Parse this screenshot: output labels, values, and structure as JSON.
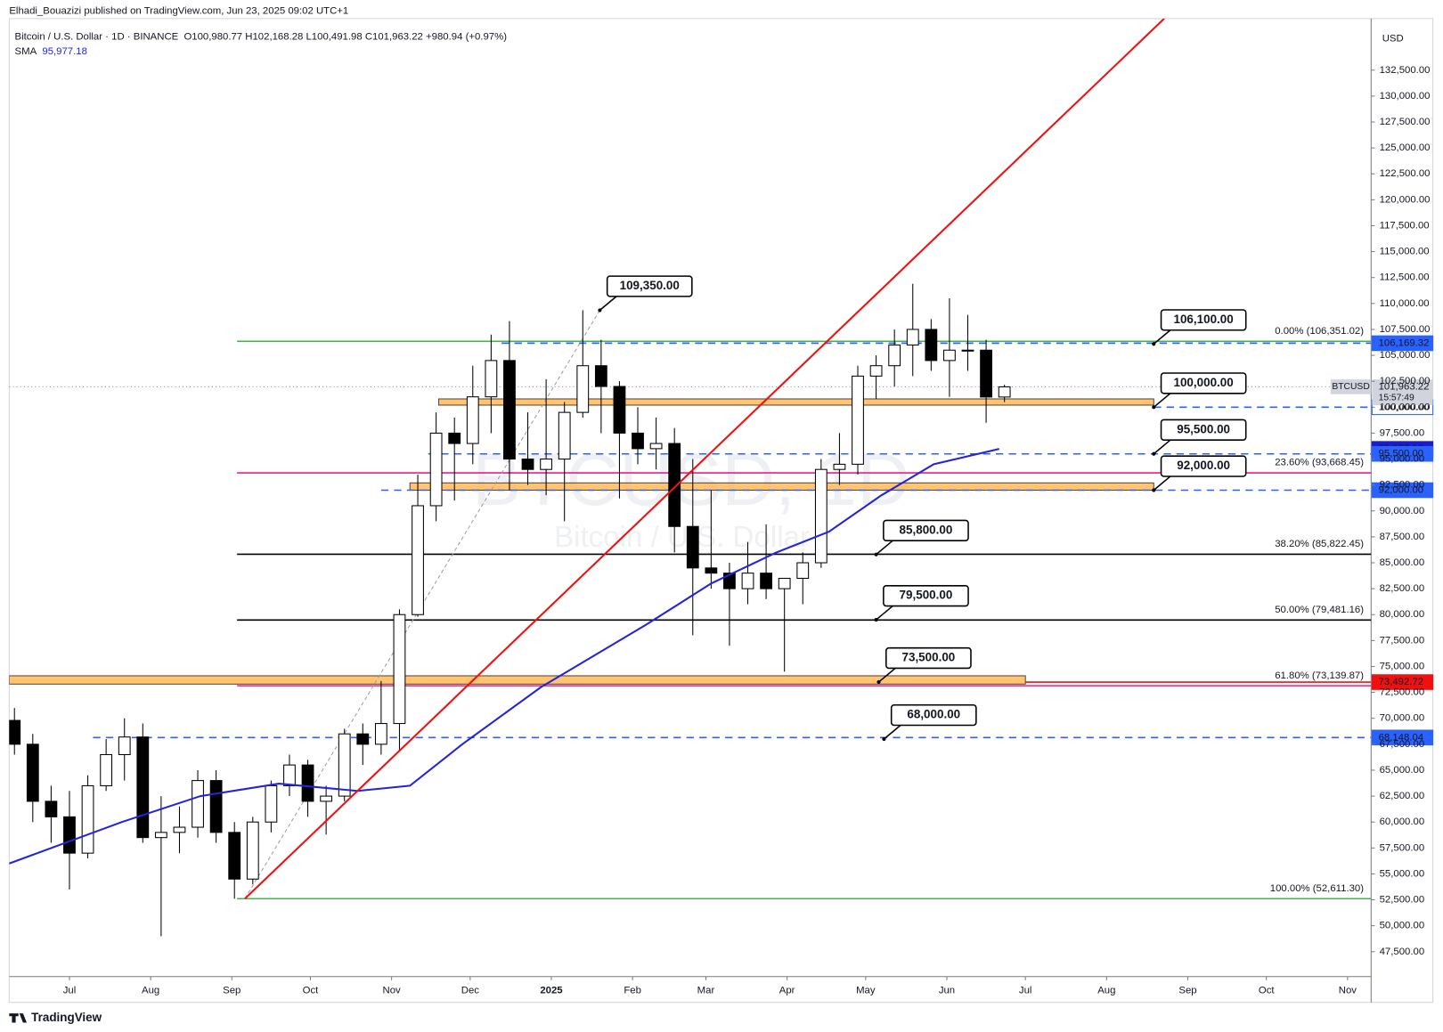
{
  "chart_data": {
    "type": "candlestick",
    "publisher": "Elhadi_Bouazizi published on TradingView.com, Jun 23, 2025 09:02 UTC+1",
    "symbol": "Bitcoin / U.S. Dollar · 1D · BINANCE",
    "ohlc_text": "O100,980.77 H102,168.28 L100,491.98 C101,963.22 +980.94 (+0.97%)",
    "sma_label": "SMA",
    "sma_text": "95,977.18",
    "currency": "USD",
    "footer": "TradingView",
    "watermark": "BTCUSD, 1D",
    "watermark_sub": "Bitcoin / U.S. Dollar",
    "up_color": "#ffffff",
    "down_color": "#000000",
    "xlim": [
      -23,
      497
    ],
    "ylim": [
      45100,
      137470
    ],
    "xticks": [
      {
        "value": 0,
        "label": "Jul"
      },
      {
        "value": 31,
        "label": "Aug"
      },
      {
        "value": 62,
        "label": "Sep"
      },
      {
        "value": 92,
        "label": "Oct"
      },
      {
        "value": 123,
        "label": "Nov"
      },
      {
        "value": 153,
        "label": "Dec"
      },
      {
        "value": 184,
        "label": "2025"
      },
      {
        "value": 215,
        "label": "Feb"
      },
      {
        "value": 243,
        "label": "Mar"
      },
      {
        "value": 274,
        "label": "Apr"
      },
      {
        "value": 304,
        "label": "May"
      },
      {
        "value": 335,
        "label": "Jun"
      },
      {
        "value": 365,
        "label": "Jul"
      },
      {
        "value": 396,
        "label": "Aug"
      },
      {
        "value": 427,
        "label": "Sep"
      },
      {
        "value": 457,
        "label": "Oct"
      },
      {
        "value": 488,
        "label": "Nov"
      }
    ],
    "yticks": [
      {
        "value": 47500,
        "label": "47,500.00"
      },
      {
        "value": 50000,
        "label": "50,000.00"
      },
      {
        "value": 52500,
        "label": "52,500.00"
      },
      {
        "value": 55000,
        "label": "55,000.00"
      },
      {
        "value": 57500,
        "label": "57,500.00"
      },
      {
        "value": 60000,
        "label": "60,000.00"
      },
      {
        "value": 62500,
        "label": "62,500.00"
      },
      {
        "value": 65000,
        "label": "65,000.00"
      },
      {
        "value": 67500,
        "label": "67,500.00"
      },
      {
        "value": 70000,
        "label": "70,000.00"
      },
      {
        "value": 72500,
        "label": "72,500.00"
      },
      {
        "value": 75000,
        "label": "75,000.00"
      },
      {
        "value": 77500,
        "label": "77,500.00"
      },
      {
        "value": 80000,
        "label": "80,000.00"
      },
      {
        "value": 82500,
        "label": "82,500.00"
      },
      {
        "value": 85000,
        "label": "85,000.00"
      },
      {
        "value": 87500,
        "label": "87,500.00"
      },
      {
        "value": 90000,
        "label": "90,000.00"
      },
      {
        "value": 92500,
        "label": "92,500.00"
      },
      {
        "value": 95000,
        "label": "95,000.00"
      },
      {
        "value": 97500,
        "label": "97,500.00"
      },
      {
        "value": 100000,
        "label": "100,000.00"
      },
      {
        "value": 102500,
        "label": "102,500.00"
      },
      {
        "value": 105000,
        "label": "105,000.00"
      },
      {
        "value": 107500,
        "label": "107,500.00"
      },
      {
        "value": 110000,
        "label": "110,000.00"
      },
      {
        "value": 112500,
        "label": "112,500.00"
      },
      {
        "value": 115000,
        "label": "115,000.00"
      },
      {
        "value": 117500,
        "label": "117,500.00"
      },
      {
        "value": 120000,
        "label": "120,000.00"
      },
      {
        "value": 122500,
        "label": "122,500.00"
      },
      {
        "value": 125000,
        "label": "125,000.00"
      },
      {
        "value": 127500,
        "label": "127,500.00"
      },
      {
        "value": 130000,
        "label": "130,000.00"
      },
      {
        "value": 132500,
        "label": "132,500.00"
      }
    ],
    "x": [
      -21,
      -14,
      -7,
      0,
      7,
      14,
      21,
      28,
      35,
      42,
      49,
      56,
      63,
      70,
      77,
      84,
      91,
      98,
      105,
      112,
      119,
      126,
      133,
      140,
      147,
      154,
      161,
      168,
      175,
      182,
      189,
      196,
      203,
      210,
      217,
      224,
      231,
      238,
      245,
      252,
      259,
      266,
      273,
      280,
      287,
      294,
      301,
      308,
      315,
      322,
      329,
      336,
      343,
      350,
      357
    ],
    "open": [
      69800,
      67500,
      62000,
      60500,
      57000,
      63500,
      66500,
      68200,
      58500,
      59000,
      59500,
      64000,
      59000,
      54500,
      60000,
      63500,
      65500,
      62000,
      62500,
      68500,
      67500,
      69500,
      80000,
      90500,
      97500,
      96500,
      101000,
      104500,
      95000,
      94000,
      95000,
      99500,
      104000,
      102000,
      97500,
      96000,
      96500,
      88500,
      84500,
      84000,
      82500,
      84000,
      82500,
      83500,
      85000,
      94000,
      94500,
      103000,
      104000,
      106000,
      107500,
      104500,
      105500,
      105500,
      100980.77
    ],
    "high": [
      71000,
      68500,
      63500,
      63000,
      64500,
      68000,
      70000,
      69500,
      62500,
      61500,
      65000,
      65000,
      60000,
      60500,
      64000,
      66500,
      66000,
      63500,
      69000,
      69500,
      73600,
      80500,
      93500,
      99500,
      99000,
      104000,
      107000,
      108300,
      99500,
      102700,
      100500,
      109350,
      106500,
      102500,
      100000,
      99000,
      98000,
      95000,
      92000,
      85000,
      87000,
      88700,
      83500,
      86000,
      95000,
      97500,
      104000,
      105000,
      107500,
      111900,
      108500,
      110500,
      108900,
      106500,
      102168.28
    ],
    "low": [
      66500,
      60000,
      58000,
      53500,
      56500,
      63000,
      64000,
      58000,
      49000,
      57000,
      58500,
      58000,
      52600,
      54000,
      59000,
      62500,
      60500,
      58800,
      62000,
      65500,
      66500,
      66800,
      79800,
      89000,
      91000,
      94500,
      97500,
      92000,
      92500,
      91500,
      89000,
      99000,
      97500,
      91200,
      94500,
      94000,
      86000,
      78000,
      82500,
      77000,
      81000,
      81500,
      74500,
      81000,
      84500,
      92500,
      93500,
      100800,
      102000,
      103000,
      103500,
      101000,
      103500,
      98500,
      100491.98
    ],
    "close": [
      67500,
      62000,
      60500,
      57000,
      63500,
      66500,
      68200,
      58500,
      59000,
      59500,
      64000,
      59000,
      54500,
      60000,
      63500,
      65500,
      62000,
      62500,
      68500,
      67500,
      69500,
      80000,
      90500,
      97500,
      96500,
      101000,
      104500,
      95000,
      94000,
      95000,
      99500,
      104000,
      102000,
      97500,
      96000,
      96500,
      88500,
      84500,
      84000,
      82500,
      84000,
      82500,
      83500,
      85000,
      94000,
      94500,
      103000,
      104000,
      106000,
      107500,
      104500,
      105500,
      105500,
      100980.77,
      101963.22
    ],
    "sma": {
      "color": "#2424d8",
      "x": [
        -23,
        20,
        50,
        80,
        110,
        130,
        150,
        180,
        220,
        245,
        270,
        290,
        310,
        330,
        355
      ],
      "values": [
        56000,
        60000,
        62500,
        63700,
        63000,
        63500,
        67500,
        73000,
        79000,
        83000,
        86000,
        88000,
        91500,
        94500,
        95977.18
      ]
    },
    "fib_start": 64,
    "fib": [
      {
        "value": 106351.02,
        "label": "0.00% (106,351.02)",
        "color": "#4caf50"
      },
      {
        "value": 93668.45,
        "label": "23.60% (93,668.45)",
        "color": "#e91e8c"
      },
      {
        "value": 85822.45,
        "label": "38.20% (85,822.45)",
        "color": "#000000"
      },
      {
        "value": 79481.16,
        "label": "50.00% (79,481.16)",
        "color": "#000000"
      },
      {
        "value": 73139.87,
        "label": "61.80% (73,139.87)",
        "color": "#e91e8c"
      },
      {
        "value": 52611.3,
        "label": "100.00% (52,611.30)",
        "color": "#4caf50"
      }
    ],
    "dashed_levels": [
      {
        "value": 106169.32,
        "from": 165,
        "color": "#2962ff"
      },
      {
        "value": 100000,
        "from": 414,
        "color": "#2962ff"
      },
      {
        "value": 95500,
        "from": 137,
        "color": "#2962ff"
      },
      {
        "value": 92000,
        "from": 119,
        "color": "#2962ff"
      },
      {
        "value": 68148.04,
        "from": 9,
        "color": "#2962ff"
      }
    ],
    "solid_levels": [
      {
        "value": 73492.72,
        "from": 365,
        "color": "#f01010"
      }
    ],
    "zones": [
      {
        "low": 100200,
        "high": 100800,
        "from": 141,
        "to": 414
      },
      {
        "low": 92000,
        "high": 92700,
        "from": 130,
        "to": 414
      },
      {
        "low": 73300,
        "high": 74100,
        "from": -23,
        "to": 365
      }
    ],
    "trendline": {
      "color": "#f01010",
      "points": [
        [
          67,
          52611
        ],
        [
          418,
          137470
        ]
      ]
    },
    "projection": {
      "color": "#9e9e9e",
      "points": [
        [
          67,
          52611
        ],
        [
          202.5,
          109350
        ]
      ]
    },
    "callouts": [
      {
        "value": 109350,
        "label": "109,350.00",
        "x": 202.5
      },
      {
        "value": 106100,
        "label": "106,100.00",
        "x": 414
      },
      {
        "value": 100000,
        "label": "100,000.00",
        "x": 414
      },
      {
        "value": 95500,
        "label": "95,500.00",
        "x": 414
      },
      {
        "value": 92000,
        "label": "92,000.00",
        "x": 414
      },
      {
        "value": 85800,
        "label": "85,800.00",
        "x": 308
      },
      {
        "value": 79500,
        "label": "79,500.00",
        "x": 308
      },
      {
        "value": 73500,
        "label": "73,500.00",
        "x": 309
      },
      {
        "value": 68000,
        "label": "68,000.00",
        "x": 311
      }
    ],
    "price_tags": [
      {
        "value": 106169.32,
        "label": "106,169.32",
        "bg": "#2962ff",
        "fg": "#ffffff"
      },
      {
        "value": 100000,
        "label": "100,000.00",
        "bg": "#ffffff",
        "fg": "#2962ff"
      },
      {
        "value": 95977.18,
        "label": "95,977.18",
        "bg": "#1a1ad0",
        "fg": "#ffffff"
      },
      {
        "value": 95500,
        "label": "95,500.00",
        "bg": "#2962ff",
        "fg": "#ffffff"
      },
      {
        "value": 92000,
        "label": "92,000.00",
        "bg": "#2962ff",
        "fg": "#ffffff"
      },
      {
        "value": 73492.72,
        "label": "73,492.72",
        "bg": "#f01010",
        "fg": "#ffffff"
      },
      {
        "value": 68148.04,
        "label": "68,148.04",
        "bg": "#2962ff",
        "fg": "#ffffff"
      }
    ],
    "last_price": {
      "symbol": "BTCUSD",
      "value": 101963.22,
      "label": "101,963.22",
      "countdown": "15:57:49"
    }
  }
}
